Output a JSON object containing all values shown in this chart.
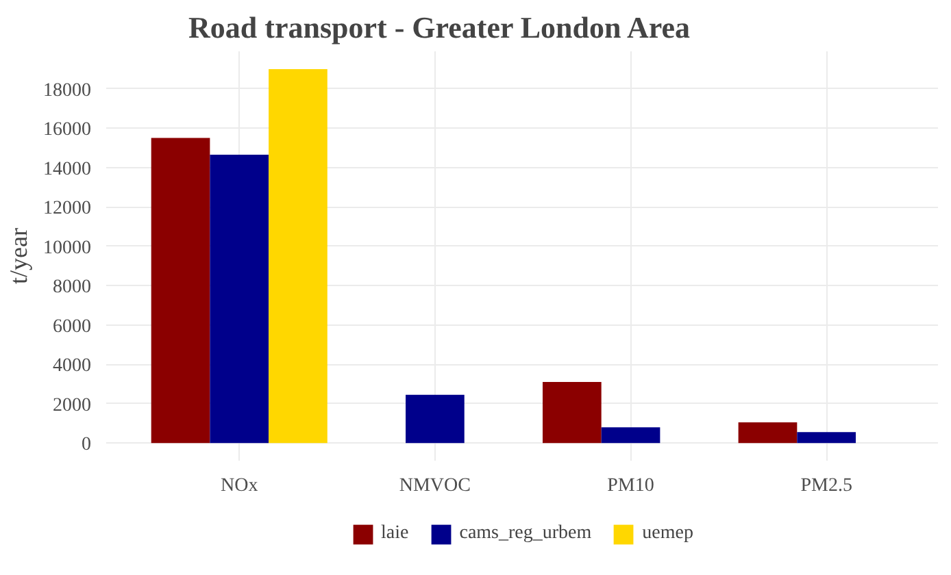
{
  "chart_data": {
    "type": "bar",
    "title": "Road transport - Greater London Area",
    "ylabel": "t/year",
    "categories": [
      "NOx",
      "NMVOC",
      "PM10",
      "PM2.5"
    ],
    "series": [
      {
        "name": "laie",
        "color": "#8b0000",
        "values": [
          15500,
          null,
          3100,
          1050
        ]
      },
      {
        "name": "cams_reg_urbem",
        "color": "#00008b",
        "values": [
          14650,
          2450,
          800,
          550
        ]
      },
      {
        "name": "uemep",
        "color": "#ffd700",
        "values": [
          19000,
          null,
          null,
          null
        ]
      }
    ],
    "ylim": [
      -900,
      19900
    ],
    "yticks": [
      0,
      2000,
      4000,
      6000,
      8000,
      10000,
      12000,
      14000,
      16000,
      18000
    ],
    "grid": true,
    "legend": "bottom"
  }
}
